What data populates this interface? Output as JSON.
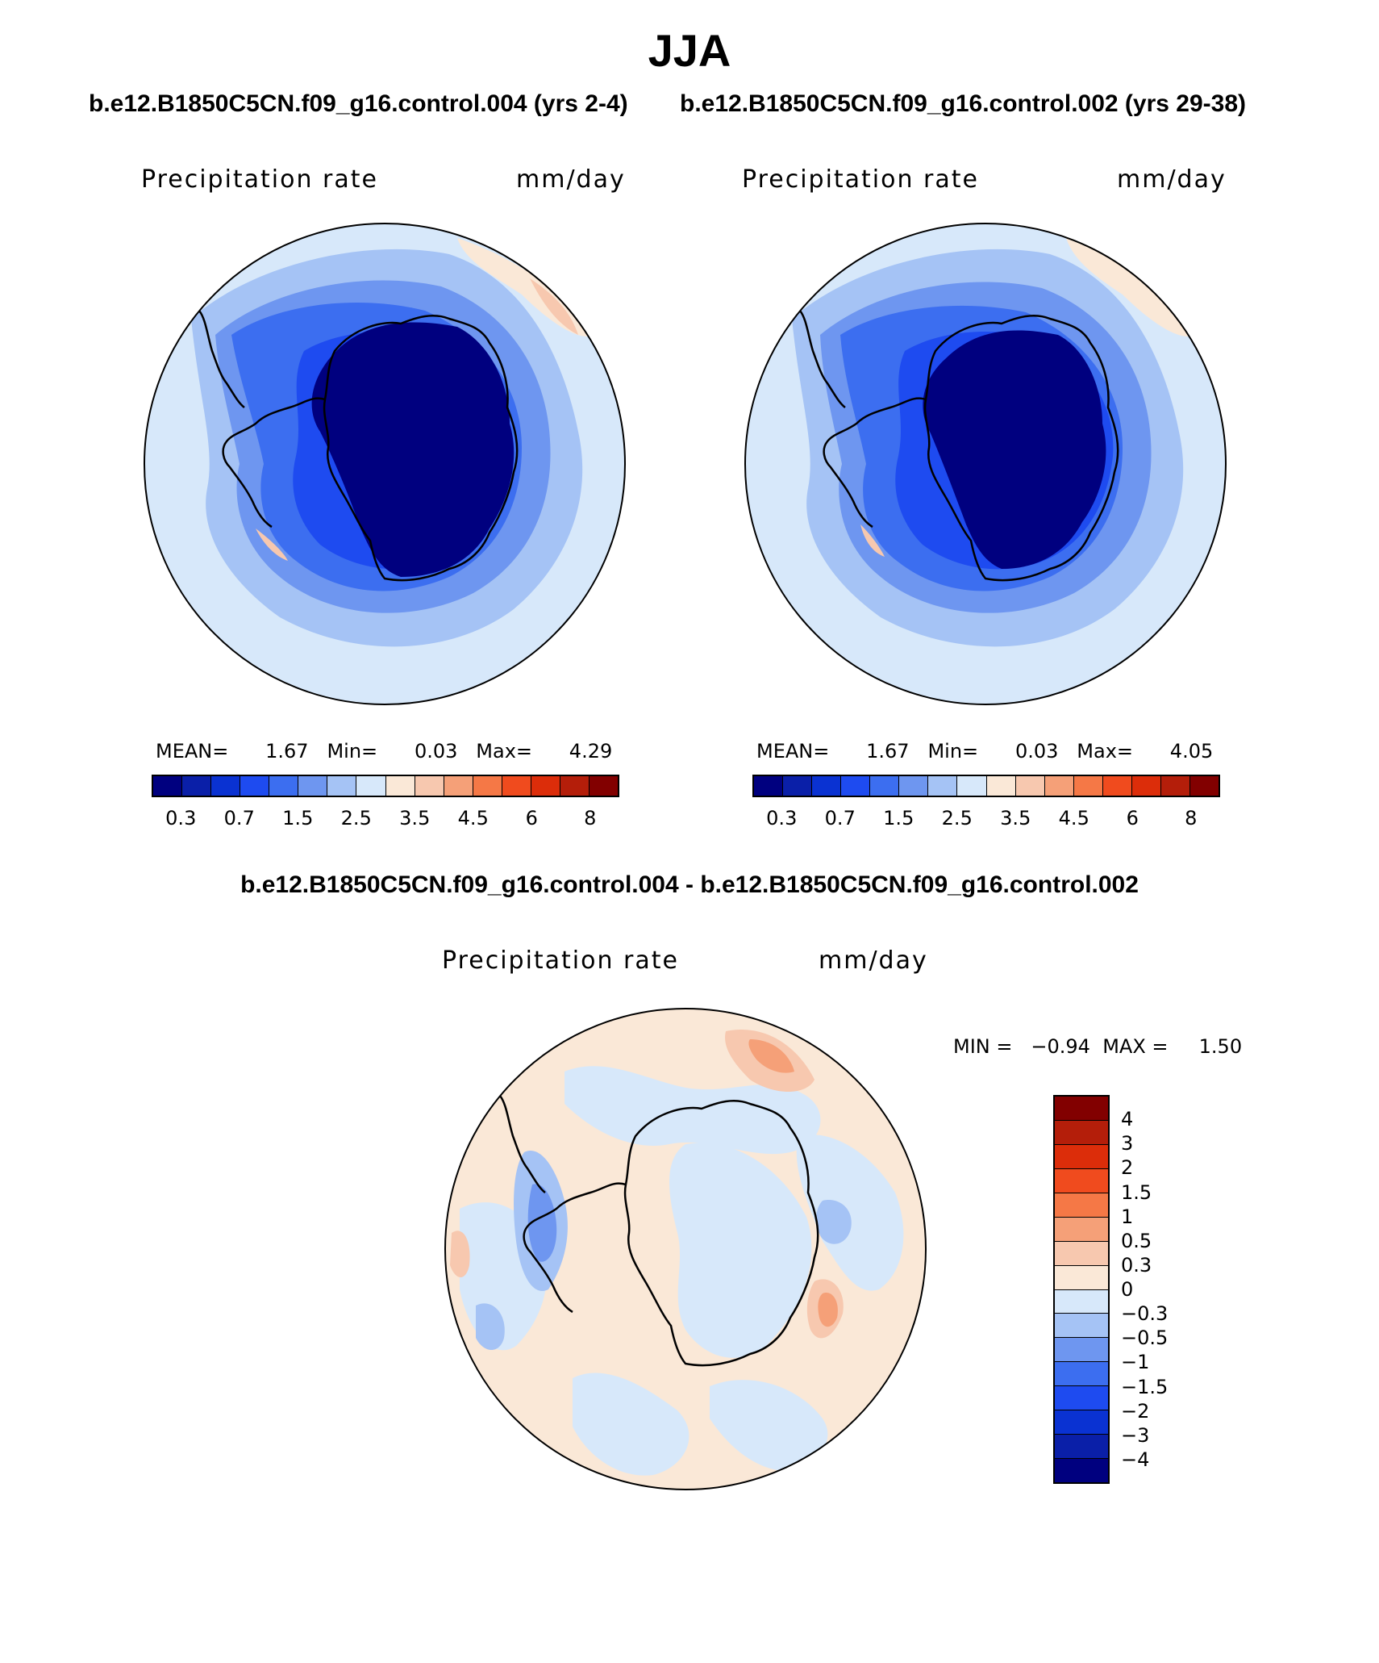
{
  "title": "JJA",
  "panel_left": {
    "case_title": "b.e12.B1850C5CN.f09_g16.control.004 (yrs 2-4)",
    "variable": "Precipitation rate",
    "units": "mm/day",
    "mean_label": "MEAN=",
    "mean_value": "1.67",
    "min_label": "Min=",
    "min_value": "0.03",
    "max_label": "Max=",
    "max_value": "4.29"
  },
  "panel_right": {
    "case_title": "b.e12.B1850C5CN.f09_g16.control.002 (yrs 29-38)",
    "variable": "Precipitation rate",
    "units": "mm/day",
    "mean_label": "MEAN=",
    "mean_value": "1.67",
    "min_label": "Min=",
    "min_value": "0.03",
    "max_label": "Max=",
    "max_value": "4.05"
  },
  "panel_diff": {
    "case_title": "b.e12.B1850C5CN.f09_g16.control.004 - b.e12.B1850C5CN.f09_g16.control.002",
    "variable": "Precipitation rate",
    "units": "mm/day",
    "min_label": "MIN =",
    "min_value": "−0.94",
    "max_label": "MAX =",
    "max_value": "1.50"
  },
  "abs_colorbar": {
    "colors": [
      "#00007f",
      "#0a1fa8",
      "#0a32d2",
      "#1e4bf0",
      "#3c6ef0",
      "#6e96f0",
      "#a5c3f5",
      "#d7e8fa",
      "#fae8d7",
      "#f7c8af",
      "#f5a078",
      "#f57846",
      "#f04b1e",
      "#dc2d0a",
      "#b41e0a",
      "#820000"
    ],
    "tick_labels": [
      "0.3",
      "0.7",
      "1.5",
      "2.5",
      "3.5",
      "4.5",
      "6",
      "8"
    ]
  },
  "diff_colorbar": {
    "colors_top_to_bottom": [
      "#820000",
      "#b41e0a",
      "#dc2d0a",
      "#f04b1e",
      "#f57846",
      "#f5a078",
      "#f7c8af",
      "#fae8d7",
      "#d7e8fa",
      "#a5c3f5",
      "#6e96f0",
      "#3c6ef0",
      "#1e4bf0",
      "#0a32d2",
      "#0a1fa8",
      "#00007f"
    ],
    "labels_top_to_bottom": [
      "4",
      "3",
      "2",
      "1.5",
      "1",
      "0.5",
      "0.3",
      "0",
      "−0.3",
      "−0.5",
      "−1",
      "−1.5",
      "−2",
      "−3",
      "−4"
    ]
  },
  "map_colors": {
    "ocean_base": "#d7e8fa",
    "ring_1": "#a5c3f5",
    "ring_2": "#6e96f0",
    "ring_3": "#3c6ef0",
    "ring_4": "#1e4bf0",
    "continent_interior": "#00007f",
    "warm_patch": "#fae8d7",
    "warm_patch_2": "#f7c8af",
    "diff_base": "#fae8d7",
    "diff_cool": "#d7e8fa",
    "diff_cool_2": "#a5c3f5",
    "diff_cool_3": "#6e96f0",
    "diff_warm_2": "#f7c8af",
    "diff_warm_3": "#f5a078",
    "coastline": "#000000"
  }
}
